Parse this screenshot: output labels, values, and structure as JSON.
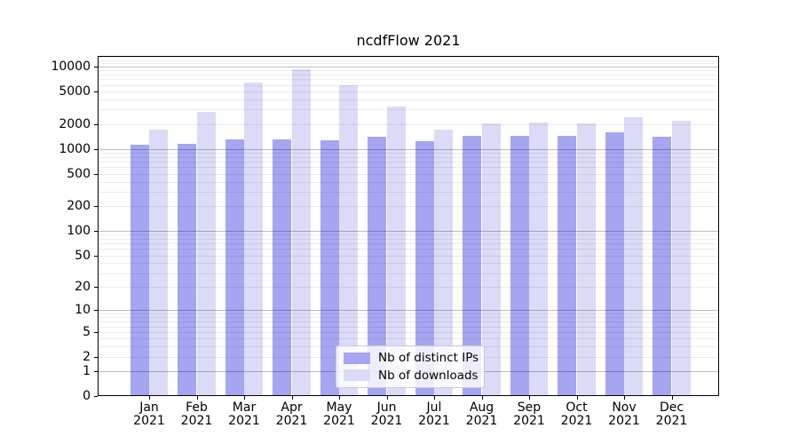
{
  "title": "ncdfFlow 2021",
  "chart_data": {
    "type": "bar",
    "title": "ncdfFlow 2021",
    "categories": [
      "Jan 2021",
      "Feb 2021",
      "Mar 2021",
      "Apr 2021",
      "May 2021",
      "Jun 2021",
      "Jul 2021",
      "Aug 2021",
      "Sep 2021",
      "Oct 2021",
      "Nov 2021",
      "Dec 2021"
    ],
    "months": [
      "Jan",
      "Feb",
      "Mar",
      "Apr",
      "May",
      "Jun",
      "Jul",
      "Aug",
      "Sep",
      "Oct",
      "Nov",
      "Dec"
    ],
    "year": "2021",
    "series": [
      {
        "name": "Nb of distinct IPs",
        "color": "#a5a5f2",
        "values": [
          1110,
          1150,
          1300,
          1290,
          1270,
          1400,
          1230,
          1430,
          1450,
          1440,
          1590,
          1400
        ]
      },
      {
        "name": "Nb of downloads",
        "color": "#dbdbf8",
        "values": [
          1700,
          2850,
          6450,
          9200,
          6000,
          3300,
          1720,
          2050,
          2100,
          2060,
          2400,
          2170
        ]
      }
    ],
    "xlabel": "",
    "ylabel": "",
    "yscale": "log1p",
    "ylim": [
      0,
      13450
    ],
    "yticks": [
      0,
      1,
      2,
      5,
      10,
      20,
      50,
      100,
      200,
      500,
      1000,
      2000,
      5000,
      10000
    ],
    "ytick_labels": [
      "0",
      "1",
      "2",
      "5",
      "10",
      "20",
      "50",
      "100",
      "200",
      "500",
      "1000",
      "2000",
      "5000",
      "10000"
    ],
    "major_gridlines": [
      1,
      10,
      100,
      1000,
      10000
    ],
    "grid": true,
    "legend_position": "lower center inside"
  }
}
